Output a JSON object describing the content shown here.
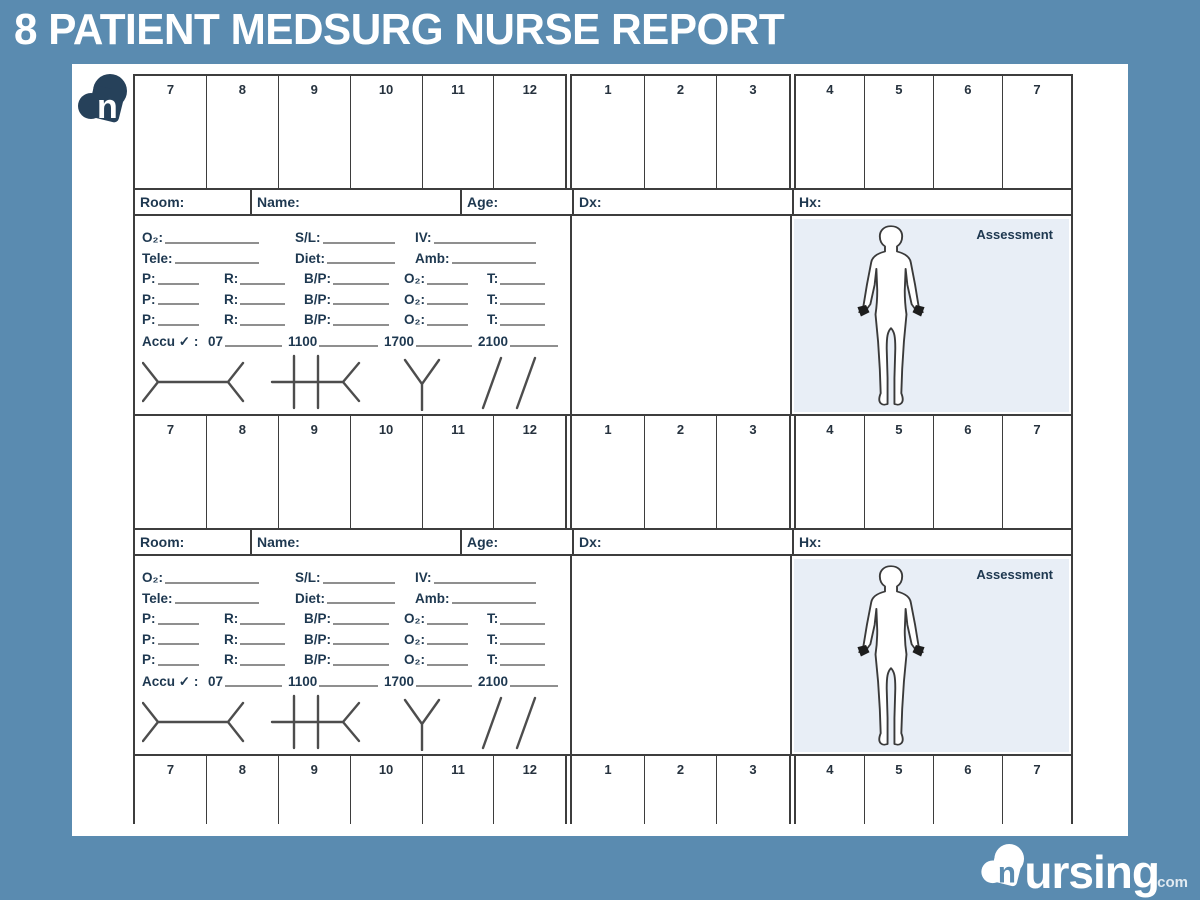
{
  "header": {
    "title": "8 PATIENT MEDSURG NURSE REPORT"
  },
  "branding": {
    "mark_letter": "n",
    "wordmark_rest": "ursing",
    "tld": ".com"
  },
  "colors": {
    "background": "#5a8bb0",
    "page": "#ffffff",
    "ink": "#1e3850",
    "grid": "#3d3d3d",
    "blank_line": "#8f8f8f",
    "assessment_bg": "#e8eef6",
    "logo_navy": "#26415a"
  },
  "form": {
    "hours": [
      "7",
      "8",
      "9",
      "10",
      "11",
      "12",
      "1",
      "2",
      "3",
      "4",
      "5",
      "6",
      "7"
    ],
    "info_labels": [
      "Room:",
      "Name:",
      "Age:",
      "Dx:",
      "Hx:"
    ],
    "assessment_label": "Assessment",
    "vitals": {
      "line_rows": [
        [
          "O₂:",
          "S/L:",
          "IV:"
        ],
        [
          "Tele:",
          "Diet:",
          "Amb:"
        ]
      ],
      "vs_rows": [
        [
          "P:",
          "R:",
          "B/P:",
          "O₂:",
          "T:"
        ],
        [
          "P:",
          "R:",
          "B/P:",
          "O₂:",
          "T:"
        ],
        [
          "P:",
          "R:",
          "B/P:",
          "O₂:",
          "T:"
        ]
      ],
      "accu_prefix": "Accu ✓ :",
      "accu_times": [
        "07",
        "1100",
        "1700",
        "2100"
      ]
    }
  }
}
